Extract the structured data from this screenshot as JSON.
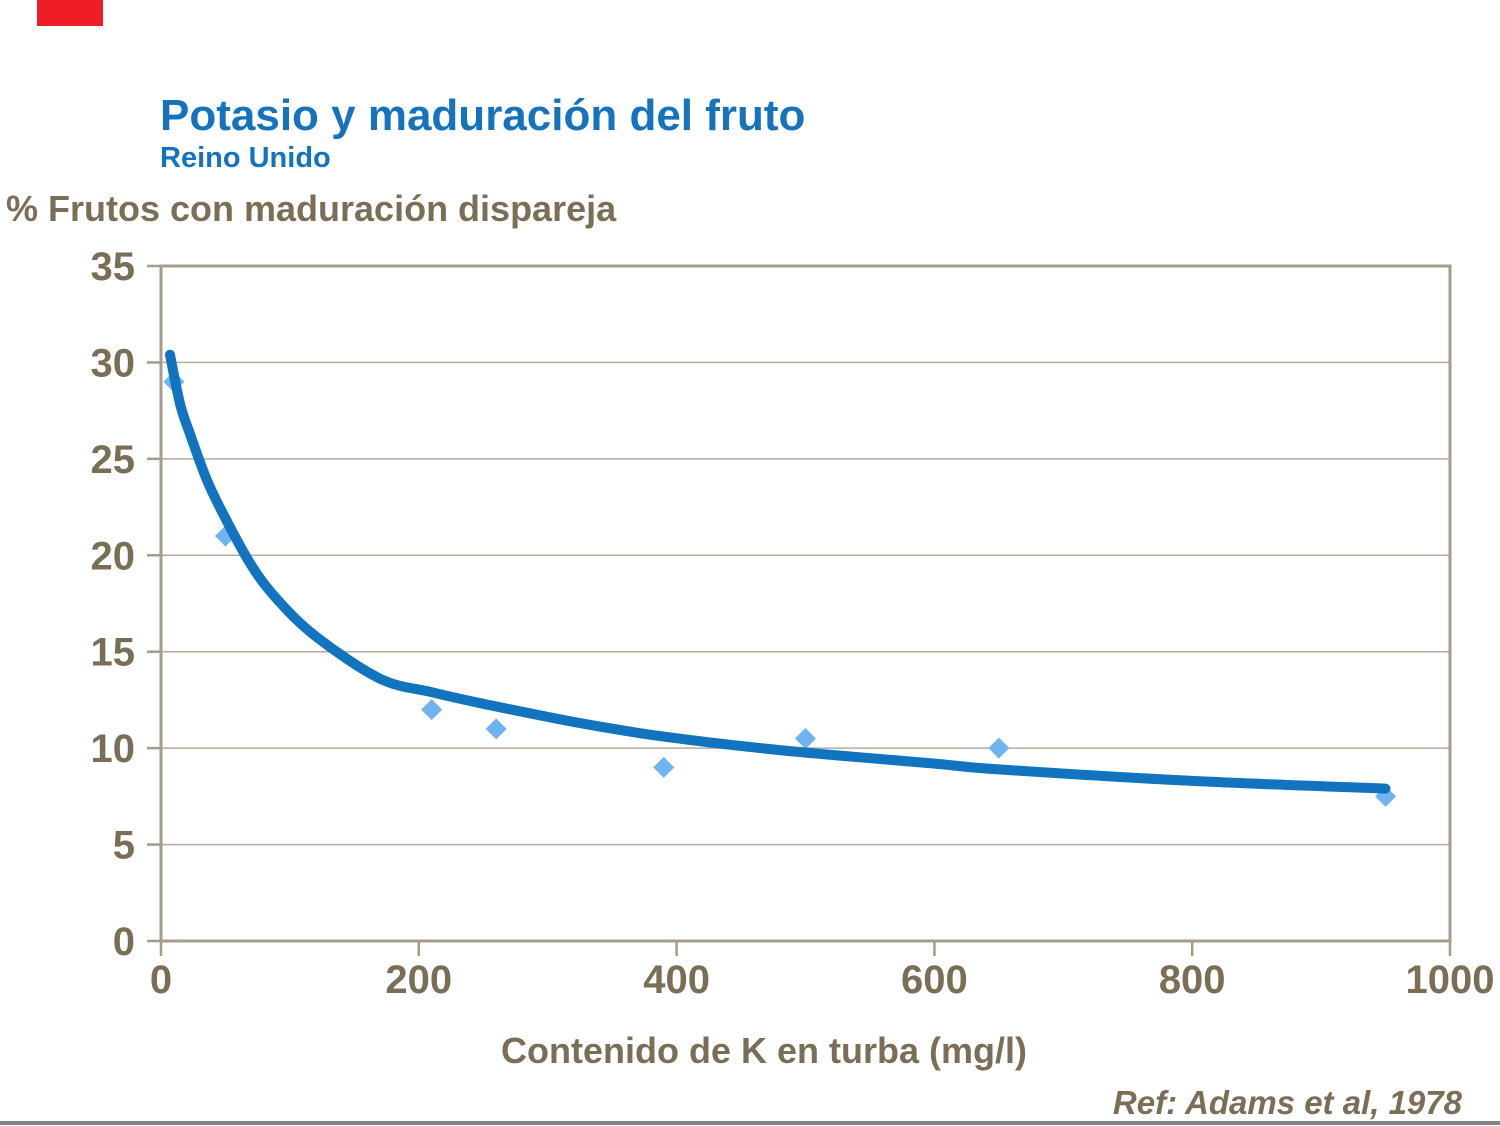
{
  "header": {
    "title": "Potasio y maduración del fruto",
    "subtitle": "Reino Unido"
  },
  "ref_text": "Ref: Adams et al, 1978",
  "chart_data": {
    "type": "scatter",
    "title": "Potasio y maduración del fruto (Reino Unido)",
    "ylabel": "% Frutos con maduración dispareja",
    "xlabel": "Contenido de K en turba (mg/l)",
    "xlim": [
      0,
      1000
    ],
    "ylim": [
      0,
      35
    ],
    "xticks": [
      0,
      200,
      400,
      600,
      800,
      1000
    ],
    "yticks": [
      0,
      5,
      10,
      15,
      20,
      25,
      30,
      35
    ],
    "grid": "horizontal",
    "legend": "none",
    "points": [
      [
        10,
        29
      ],
      [
        50,
        21
      ],
      [
        210,
        12
      ],
      [
        260,
        11
      ],
      [
        390,
        9
      ],
      [
        500,
        10.5
      ],
      [
        650,
        10
      ],
      [
        950,
        7.5
      ]
    ],
    "trend_line": [
      [
        7,
        30.4
      ],
      [
        15,
        27.8
      ],
      [
        23,
        26.2
      ],
      [
        35,
        24.0
      ],
      [
        47,
        22.3
      ],
      [
        69,
        19.6
      ],
      [
        89,
        17.8
      ],
      [
        120,
        15.8
      ],
      [
        170,
        13.6
      ],
      [
        210,
        12.9
      ],
      [
        250,
        12.3
      ],
      [
        325,
        11.3
      ],
      [
        390,
        10.6
      ],
      [
        480,
        9.9
      ],
      [
        600,
        9.2
      ],
      [
        650,
        8.9
      ],
      [
        800,
        8.3
      ],
      [
        950,
        7.9
      ]
    ]
  },
  "colors": {
    "title_blue": "#1573BE",
    "curve_blue": "#1274BF",
    "marker_blue": "#6FB3F1",
    "text_brown": "#7B6E56",
    "border_tan": "#A69C89",
    "grid_tan": "#B5AC9B",
    "red_accent": "#EE1D25",
    "bottom_bar": "#838383"
  }
}
